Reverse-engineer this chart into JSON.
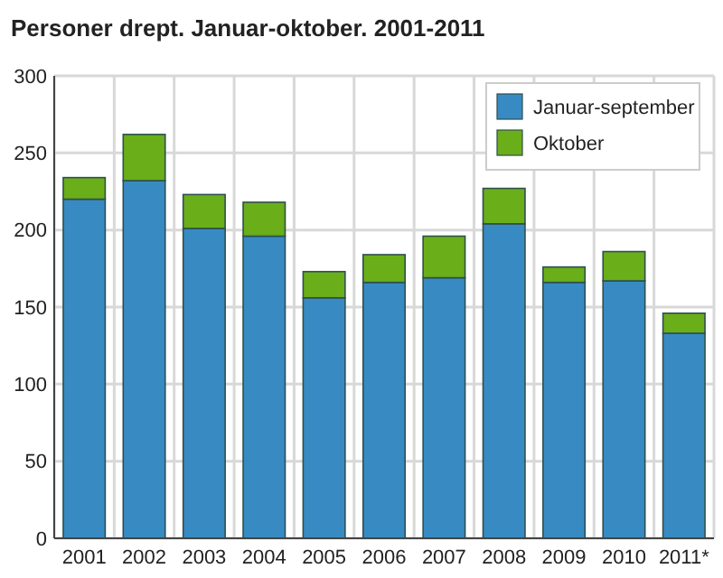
{
  "chart_data": {
    "type": "bar",
    "title": "Personer drept. Januar-oktober. 2001-2011",
    "categories": [
      "2001",
      "2002",
      "2003",
      "2004",
      "2005",
      "2006",
      "2007",
      "2008",
      "2009",
      "2010",
      "2011*"
    ],
    "series": [
      {
        "name": "Januar-september",
        "color": "#388bc2",
        "values": [
          220,
          232,
          201,
          196,
          156,
          166,
          169,
          204,
          166,
          167,
          133
        ]
      },
      {
        "name": "Oktober",
        "color": "#6aae19",
        "values": [
          14,
          30,
          22,
          22,
          17,
          18,
          27,
          23,
          10,
          19,
          13
        ]
      }
    ],
    "stacked": true,
    "ylim": [
      0,
      300
    ],
    "yticks": [
      0,
      50,
      100,
      150,
      200,
      250,
      300
    ],
    "grid": true,
    "legend": "top right"
  }
}
